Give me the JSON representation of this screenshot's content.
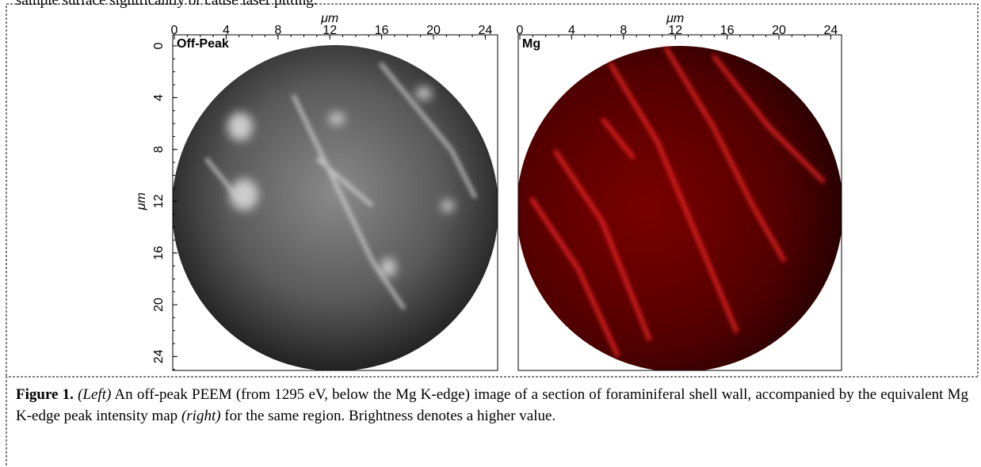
{
  "body_text": "sample surface significantly or cause laser pitting.",
  "figure": {
    "panels": [
      {
        "label": "Off-Peak",
        "x_axis_label": "μm",
        "y_axis_label": "μm",
        "xticks": [
          0,
          4,
          8,
          12,
          16,
          20,
          24
        ],
        "yticks": [
          0,
          4,
          8,
          12,
          16,
          20,
          24
        ]
      },
      {
        "label": "Mg",
        "x_axis_label": "μm",
        "xticks": [
          0,
          4,
          8,
          12,
          16,
          20,
          24
        ]
      }
    ]
  },
  "caption": {
    "label": "Figure 1.",
    "parts": [
      "(Left)",
      " An off-peak PEEM (from 1295 eV, below the Mg K-edge) image of a section of foraminiferal shell wall, accompanied by the equivalent Mg K-edge peak intensity map ",
      "(right)",
      " for the same region. Brightness denotes a higher value."
    ]
  }
}
